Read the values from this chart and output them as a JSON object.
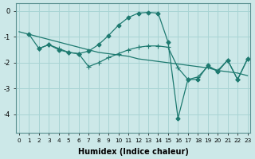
{
  "xlabel": "Humidex (Indice chaleur)",
  "bg_color": "#cce8e8",
  "grid_color": "#a8d4d4",
  "line_color": "#1e7a70",
  "x_ticks": [
    0,
    1,
    2,
    3,
    4,
    5,
    6,
    7,
    8,
    9,
    10,
    11,
    12,
    13,
    14,
    15,
    16,
    17,
    18,
    19,
    20,
    21,
    22,
    23
  ],
  "y_ticks": [
    0,
    -1,
    -2,
    -3,
    -4
  ],
  "ylim": [
    -4.7,
    0.3
  ],
  "xlim": [
    -0.3,
    23.3
  ],
  "line1": {
    "x": [
      0,
      1,
      2,
      3,
      4,
      5,
      6,
      7,
      8,
      9,
      10,
      11,
      12,
      13,
      14,
      15,
      16,
      17,
      18,
      19,
      20,
      21,
      22,
      23
    ],
    "y": [
      -0.8,
      -0.9,
      -1.0,
      -1.1,
      -1.2,
      -1.3,
      -1.4,
      -1.5,
      -1.6,
      -1.65,
      -1.7,
      -1.75,
      -1.85,
      -1.9,
      -1.95,
      -2.0,
      -2.05,
      -2.1,
      -2.15,
      -2.2,
      -2.3,
      -2.35,
      -2.4,
      -2.5
    ]
  },
  "line2": {
    "x": [
      1,
      2,
      3,
      4,
      5,
      6,
      7,
      8,
      9,
      10,
      11,
      12,
      13,
      14,
      15,
      16,
      17,
      18,
      19,
      20,
      21,
      22,
      23
    ],
    "y": [
      -0.9,
      -1.45,
      -1.3,
      -1.5,
      -1.6,
      -1.65,
      -1.55,
      -1.3,
      -0.95,
      -0.55,
      -0.25,
      -0.08,
      -0.05,
      -0.08,
      -1.2,
      -4.15,
      -2.65,
      -2.65,
      -2.1,
      -2.35,
      -1.9,
      -2.65,
      -1.85
    ]
  },
  "line3": {
    "x": [
      2,
      3,
      4,
      5,
      6,
      7,
      8,
      9,
      10,
      11,
      12,
      13,
      14,
      15,
      16,
      17,
      18,
      19,
      20,
      21,
      22,
      23
    ],
    "y": [
      -1.45,
      -1.3,
      -1.45,
      -1.6,
      -1.65,
      -2.15,
      -2.0,
      -1.8,
      -1.65,
      -1.5,
      -1.4,
      -1.35,
      -1.35,
      -1.4,
      -2.2,
      -2.65,
      -2.55,
      -2.15,
      -2.3,
      -1.9,
      -2.65,
      -1.85
    ]
  }
}
